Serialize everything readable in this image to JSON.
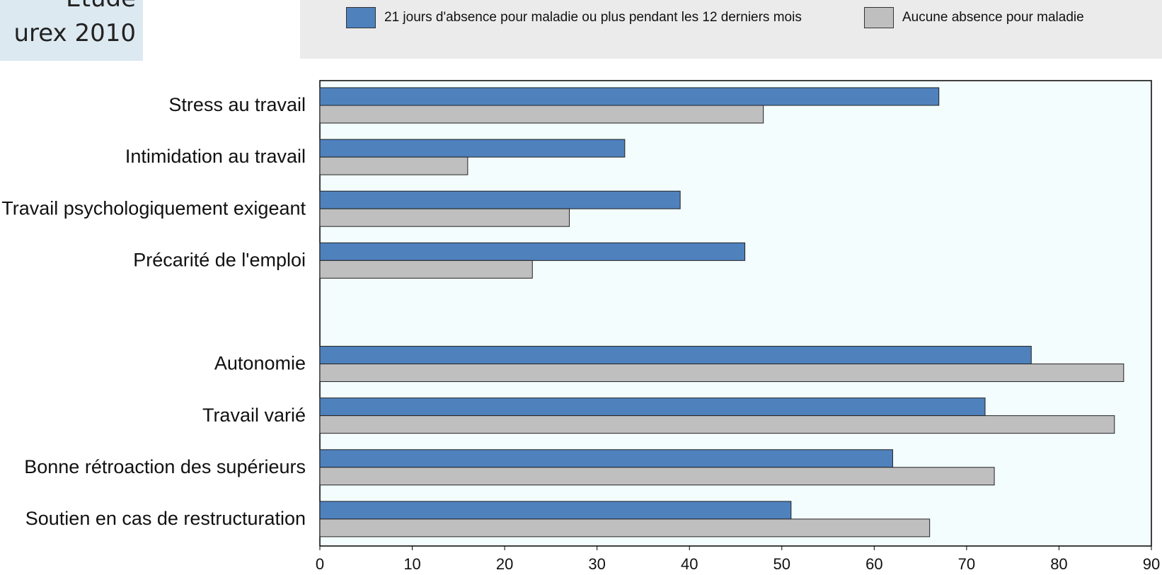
{
  "header": {
    "corner_line1": "Étude",
    "corner_line2": "urex 2010"
  },
  "colors": {
    "series1": "#4f81bd",
    "series2": "#bfbfbf",
    "plot_bg": "#f3fdfd",
    "legend_bg": "#ebebeb",
    "corner_bg": "#dde9f1"
  },
  "chart_data": {
    "type": "bar",
    "orientation": "horizontal",
    "categories": [
      "Stress au travail",
      "Intimidation au travail",
      "Travail psychologiquement exigeant",
      "Précarité de l'emploi",
      "",
      "Autonomie",
      "Travail varié",
      "Bonne rétroaction des supérieurs",
      "Soutien en cas de restructuration"
    ],
    "series": [
      {
        "name": "21 jours d'absence pour maladie ou plus pendant les 12 derniers mois",
        "values": [
          67,
          33,
          39,
          46,
          null,
          77,
          72,
          62,
          51
        ]
      },
      {
        "name": "Aucune absence pour maladie",
        "values": [
          48,
          16,
          27,
          23,
          null,
          87,
          86,
          73,
          66
        ]
      }
    ],
    "xlim": [
      0,
      90
    ],
    "xticks": [
      "0",
      "10",
      "20",
      "30",
      "40",
      "50",
      "60",
      "70",
      "80",
      "90"
    ],
    "grid": false,
    "legend_position": "top"
  }
}
